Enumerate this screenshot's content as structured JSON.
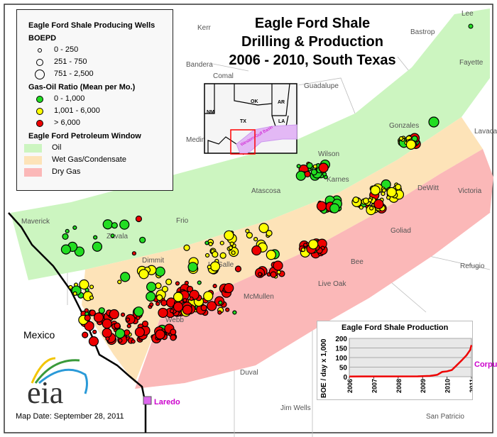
{
  "title": [
    "Eagle Ford Shale",
    "Drilling & Production",
    "2006 - 2010, South Texas"
  ],
  "legend": {
    "heading": "Eagle Ford Shale Producing Wells",
    "size_heading": "BOEPD",
    "sizes": [
      "0 - 250",
      "251 - 750",
      "751 - 2,500"
    ],
    "ratio_heading": "Gas-Oil Ratio (Mean per Mo.)",
    "ratios": [
      {
        "label": "0 - 1,000",
        "color": "#22dd22"
      },
      {
        "label": "1,001 - 6,000",
        "color": "#ffff00"
      },
      {
        "label": "> 6,000",
        "color": "#ee0000"
      }
    ],
    "window_heading": "Eagle Ford Petroleum Window",
    "windows": [
      {
        "label": "Oil",
        "color": "#ccf5c0"
      },
      {
        "label": "Wet Gas/Condensate",
        "color": "#fde3b8"
      },
      {
        "label": "Dry Gas",
        "color": "#fbb8b8"
      }
    ]
  },
  "counties": [
    "Lee",
    "Bastrop",
    "Kerr",
    "Comal",
    "Fayette",
    "Bandera",
    "Guadalupe",
    "Medina",
    "Gonzales",
    "Lavaca",
    "Wilson",
    "DeWitt",
    "Victoria",
    "Maverick",
    "Zavala",
    "Frio",
    "Atascosa",
    "Karnes",
    "Goliad",
    "Dimmit",
    "La Salle",
    "Bee",
    "Refugio",
    "Live Oak",
    "McMullen",
    "Webb",
    "Duval",
    "Jim Wells",
    "San Patricio"
  ],
  "inset": {
    "states": [
      "NM",
      "OK",
      "AR",
      "TX",
      "LA"
    ],
    "basin_label": "Western Gulf Basin"
  },
  "places": {
    "mexico": "Mexico",
    "laredo": "Laredo",
    "corpus": "Corpus Christi"
  },
  "map_date": "Map Date: September 28, 2011",
  "logo": "eia",
  "chart_data": {
    "type": "line",
    "title": "Eagle Ford Shale Production",
    "ylabel": "BOE / day x 1,000",
    "xlim": [
      2006,
      2011
    ],
    "ylim": [
      0,
      200
    ],
    "xticks": [
      "2006",
      "2007",
      "2008",
      "2009",
      "2010",
      "2011"
    ],
    "yticks": [
      "0",
      "50",
      "100",
      "150",
      "200"
    ],
    "grid": true,
    "color": "#ee0000",
    "x": [
      2006,
      2008.8,
      2009.3,
      2009.6,
      2009.8,
      2010.0,
      2010.2,
      2010.4,
      2010.6,
      2010.8,
      2010.95,
      2011.0
    ],
    "y": [
      1,
      2,
      4,
      10,
      25,
      28,
      35,
      60,
      85,
      112,
      140,
      165
    ]
  }
}
